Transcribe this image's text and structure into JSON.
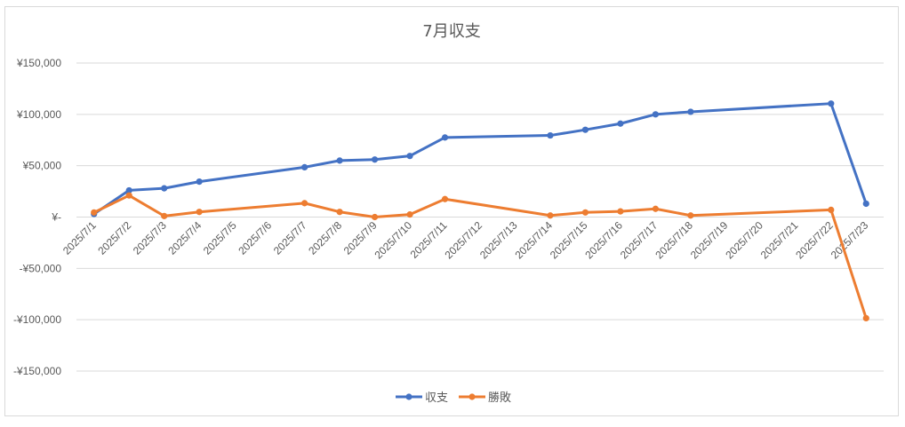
{
  "chart_data": {
    "type": "line",
    "title": "7月収支",
    "categories": [
      "2025/7/1",
      "2025/7/2",
      "2025/7/3",
      "2025/7/4",
      "2025/7/5",
      "2025/7/6",
      "2025/7/7",
      "2025/7/8",
      "2025/7/9",
      "2025/7/10",
      "2025/7/11",
      "2025/7/12",
      "2025/7/13",
      "2025/7/14",
      "2025/7/15",
      "2025/7/16",
      "2025/7/17",
      "2025/7/18",
      "2025/7/19",
      "2025/7/20",
      "2025/7/21",
      "2025/7/22",
      "2025/7/23"
    ],
    "ylim": [
      -150000,
      150000
    ],
    "yticks": [
      {
        "value": 150000,
        "label": "¥150,000"
      },
      {
        "value": 100000,
        "label": "¥100,000"
      },
      {
        "value": 50000,
        "label": "¥50,000"
      },
      {
        "value": 0,
        "label": "¥-"
      },
      {
        "value": -50000,
        "label": "-¥50,000"
      },
      {
        "value": -100000,
        "label": "-¥100,000"
      },
      {
        "value": -150000,
        "label": "-¥150,000"
      }
    ],
    "series": [
      {
        "name": "収支",
        "color": "#4472c4",
        "values": [
          3000,
          26000,
          28000,
          34500,
          null,
          null,
          48500,
          55000,
          56000,
          59500,
          77500,
          null,
          null,
          79500,
          85000,
          91000,
          100000,
          102500,
          null,
          null,
          null,
          110500,
          13000
        ]
      },
      {
        "name": "勝敗",
        "color": "#ed7d31",
        "values": [
          4500,
          21000,
          1000,
          5000,
          null,
          null,
          13500,
          5000,
          0,
          2500,
          17500,
          null,
          null,
          1500,
          4500,
          5500,
          8000,
          1500,
          null,
          null,
          null,
          7000,
          -98500
        ]
      }
    ],
    "grid": true,
    "legend": "bottom"
  }
}
